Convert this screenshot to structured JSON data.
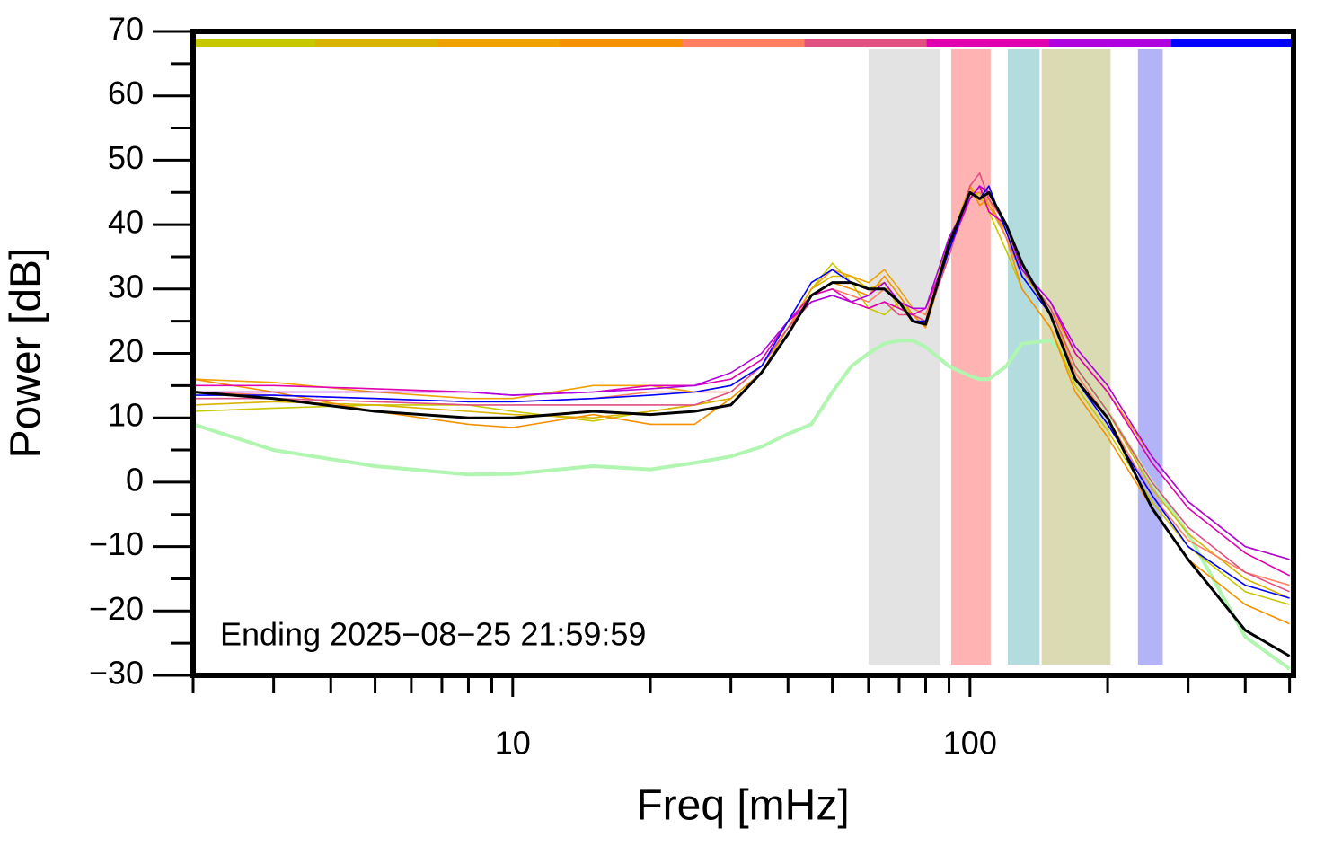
{
  "chart_data": {
    "type": "line",
    "x_label": "Freq [mHz]",
    "y_label": "Power [dB]",
    "annotation": "Ending 2025−08−25 21:59:59",
    "xscale": "log",
    "xlim": [
      2,
      510
    ],
    "ylim": [
      -30,
      70
    ],
    "xticks": [
      10,
      100
    ],
    "xminorticks": [
      2,
      3,
      4,
      5,
      6,
      7,
      8,
      9,
      20,
      30,
      40,
      50,
      60,
      70,
      80,
      90,
      200,
      300,
      400,
      500
    ],
    "yticks": [
      {
        "value": -30,
        "label": "−30"
      },
      {
        "value": -20,
        "label": "−20"
      },
      {
        "value": -10,
        "label": "−10"
      },
      0,
      10,
      20,
      30,
      40,
      50,
      60,
      70
    ],
    "yminorticks": [
      -25,
      -15,
      -5,
      5,
      15,
      25,
      35,
      45,
      55,
      65
    ],
    "colorbar": [
      "#c8c800",
      "#d8b400",
      "#f0a000",
      "#f59000",
      "#ff7f60",
      "#e05080",
      "#e000b0",
      "#b000e0",
      "#0000ff"
    ],
    "bands": [
      {
        "range": [
          60,
          86
        ],
        "color": "#e3e3e3"
      },
      {
        "range": [
          91,
          111
        ],
        "color": "#ffb3b3"
      },
      {
        "range": [
          121,
          142
        ],
        "color": "#b3dcdf"
      },
      {
        "range": [
          143.5,
          203
        ],
        "color": "#dadab3"
      },
      {
        "range": [
          233,
          264
        ],
        "color": "#b3b3f7"
      }
    ],
    "x": [
      2,
      3,
      5,
      8,
      10,
      15,
      20,
      25,
      30,
      35,
      40,
      45,
      50,
      55,
      60,
      65,
      70,
      75,
      80,
      90,
      100,
      105,
      110,
      120,
      130,
      150,
      170,
      200,
      250,
      300,
      400,
      500
    ],
    "series": [
      {
        "color": "#b0f5b0",
        "width": 4,
        "values": [
          9,
          5,
          2.5,
          1.2,
          1.3,
          2.5,
          2,
          3,
          4,
          5.5,
          7.5,
          9,
          14,
          18,
          20,
          21.5,
          22,
          22,
          21,
          18,
          16.5,
          16,
          16,
          18,
          21.5,
          22,
          18,
          11,
          0,
          -8,
          -24,
          -29
        ]
      },
      {
        "color": "#c8c800",
        "width": 1.6,
        "values": [
          11,
          11.5,
          12,
          12,
          11,
          9.5,
          11,
          12,
          13,
          17,
          24,
          30,
          34,
          31,
          27,
          26,
          28,
          26,
          25,
          38,
          44,
          45,
          42,
          36,
          30,
          24,
          15,
          8,
          -3,
          -10,
          -17,
          -19
        ]
      },
      {
        "color": "#d8b400",
        "width": 1.6,
        "values": [
          12,
          12.5,
          12,
          11,
          10.5,
          10,
          11,
          12,
          13,
          17,
          24,
          30,
          32,
          32,
          30,
          31,
          27,
          26,
          25,
          37,
          46,
          44,
          43,
          38,
          33,
          26,
          18,
          11,
          -1,
          -8,
          -15,
          -18
        ]
      },
      {
        "color": "#f0a000",
        "width": 1.6,
        "values": [
          16,
          15.5,
          14,
          13,
          13,
          15,
          15,
          14,
          15,
          18,
          24,
          30,
          33,
          32,
          31,
          33,
          30,
          27,
          26,
          36,
          44,
          46,
          43,
          39,
          33,
          27,
          20,
          14,
          4,
          -3,
          -10,
          -12
        ]
      },
      {
        "color": "#f59000",
        "width": 1.6,
        "values": [
          16,
          14,
          11,
          9,
          8.5,
          10.5,
          9,
          9,
          13,
          17,
          23,
          29,
          31,
          30,
          29,
          32,
          29,
          26,
          24,
          36,
          46,
          43,
          44,
          38,
          30,
          24,
          14,
          7,
          -4,
          -12,
          -19,
          -22
        ]
      },
      {
        "color": "#ff7f60",
        "width": 1.6,
        "values": [
          14,
          13.5,
          13,
          12.5,
          12.5,
          13,
          14,
          14,
          14,
          18,
          24,
          29,
          30,
          29,
          28,
          30,
          28,
          27,
          26,
          36,
          45,
          45,
          44,
          38,
          32,
          26,
          17,
          10,
          -2,
          -9,
          -14,
          -16
        ]
      },
      {
        "color": "#e05080",
        "width": 1.6,
        "values": [
          13,
          13,
          12.5,
          12,
          12,
          12,
          12,
          12,
          14,
          18,
          24,
          28,
          29,
          28,
          27,
          28,
          26,
          26,
          25,
          35,
          46,
          48,
          44,
          40,
          33,
          27,
          18,
          11,
          0,
          -7,
          -14,
          -17
        ]
      },
      {
        "color": "#e000b0",
        "width": 1.6,
        "values": [
          15,
          15,
          14.5,
          14,
          13.5,
          14,
          15,
          15,
          16,
          19,
          25,
          29,
          30,
          28,
          27,
          28,
          27,
          26,
          27,
          36,
          44,
          46,
          42,
          40,
          33,
          28,
          20,
          14,
          3,
          -4,
          -11,
          -14.5
        ]
      },
      {
        "color": "#b000e0",
        "width": 1.6,
        "values": [
          14,
          14,
          14,
          14,
          13.5,
          14,
          14.5,
          15,
          17,
          20,
          25,
          28,
          29,
          28,
          29,
          31,
          28,
          27,
          27,
          38,
          44,
          46,
          45,
          40,
          33,
          28,
          21,
          15,
          4,
          -3,
          -10,
          -12
        ]
      },
      {
        "color": "#0000ff",
        "width": 1.6,
        "values": [
          13.5,
          13.5,
          13,
          12.5,
          12.5,
          13,
          13.5,
          14,
          15,
          18,
          25,
          31,
          33,
          31,
          30,
          30,
          28,
          25,
          25,
          36,
          45,
          44,
          46,
          39,
          32,
          26,
          16,
          9,
          -2,
          -10,
          -16,
          -18
        ]
      },
      {
        "color": "#000000",
        "width": 3,
        "values": [
          14,
          13,
          11,
          10,
          10,
          11,
          10.5,
          11,
          12,
          17,
          23,
          29,
          31,
          31,
          30,
          30,
          28,
          25,
          24.5,
          37,
          45,
          44,
          45,
          40,
          34,
          26,
          16,
          10,
          -4,
          -12,
          -23,
          -27
        ]
      }
    ]
  }
}
